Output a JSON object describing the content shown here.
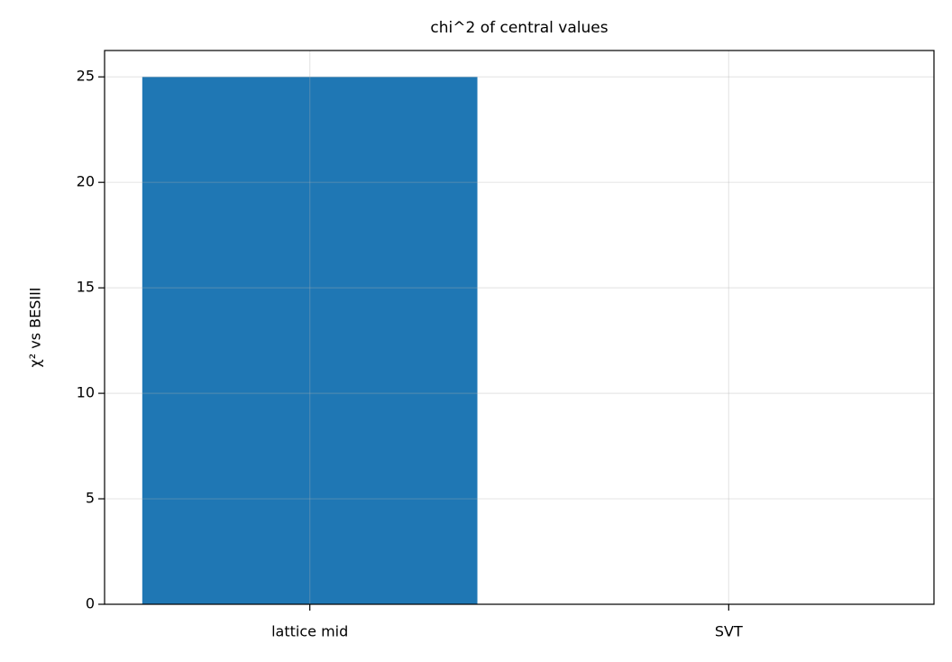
{
  "chart_data": {
    "type": "bar",
    "title": "chi^2 of central values",
    "y_label": "χ² vs BESIII",
    "categories": [
      "lattice mid",
      "SVT"
    ],
    "values": [
      25,
      0
    ],
    "color": "#1f77b4",
    "ylim": [
      0,
      26.25
    ],
    "yticks": [
      0,
      5,
      10,
      15,
      20,
      25
    ],
    "grid": true
  }
}
